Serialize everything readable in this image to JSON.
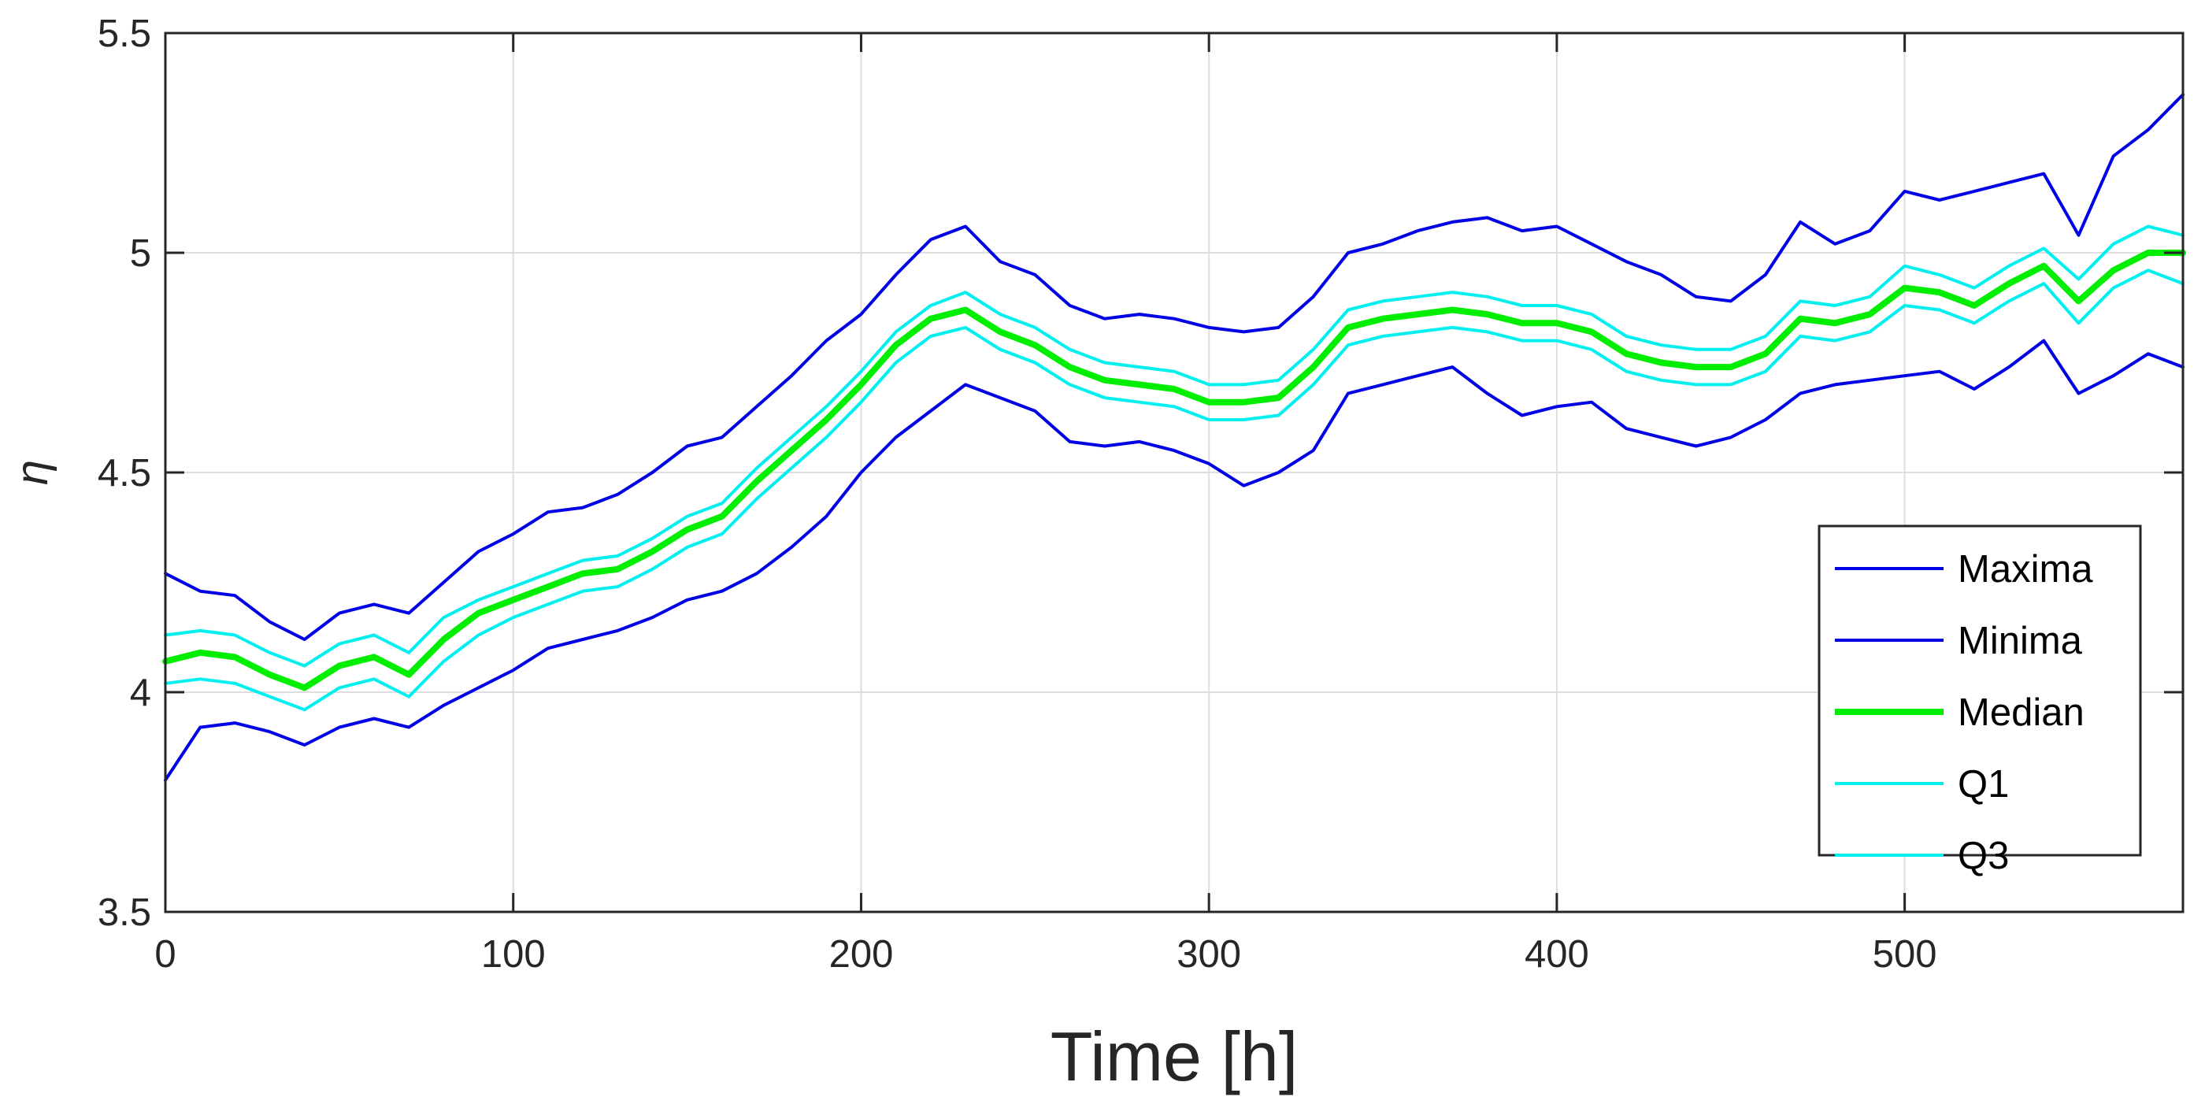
{
  "chart_data": {
    "type": "line",
    "title": "",
    "xlabel": "Time [h]",
    "ylabel": "η",
    "xlim": [
      0,
      580
    ],
    "ylim": [
      3.5,
      5.5
    ],
    "xticks": [
      0,
      100,
      200,
      300,
      400,
      500
    ],
    "yticks": [
      3.5,
      4,
      4.5,
      5,
      5.5
    ],
    "xtick_labels": [
      "0",
      "100",
      "200",
      "300",
      "400",
      "500"
    ],
    "ytick_labels": [
      "3.5",
      "4",
      "4.5",
      "5",
      "5.5"
    ],
    "grid": true,
    "legend_position": "bottom-right",
    "series": [
      {
        "name": "Maxima",
        "color": "#0000e6",
        "width": 4,
        "x": [
          0,
          10,
          20,
          30,
          40,
          50,
          60,
          70,
          80,
          90,
          100,
          110,
          120,
          130,
          140,
          150,
          160,
          170,
          180,
          190,
          200,
          210,
          220,
          230,
          240,
          250,
          260,
          270,
          280,
          290,
          300,
          310,
          320,
          330,
          340,
          350,
          360,
          370,
          380,
          390,
          400,
          410,
          420,
          430,
          440,
          450,
          460,
          470,
          480,
          490,
          500,
          510,
          520,
          530,
          540,
          550,
          560,
          570,
          580
        ],
        "values": [
          4.27,
          4.23,
          4.22,
          4.16,
          4.12,
          4.18,
          4.2,
          4.18,
          4.25,
          4.32,
          4.36,
          4.41,
          4.42,
          4.45,
          4.5,
          4.56,
          4.58,
          4.65,
          4.72,
          4.8,
          4.86,
          4.95,
          5.03,
          5.06,
          4.98,
          4.95,
          4.88,
          4.85,
          4.86,
          4.85,
          4.83,
          4.82,
          4.83,
          4.9,
          5.0,
          5.02,
          5.05,
          5.07,
          5.08,
          5.05,
          5.06,
          5.02,
          4.98,
          4.95,
          4.9,
          4.89,
          4.95,
          5.07,
          5.02,
          5.05,
          5.14,
          5.12,
          5.14,
          5.16,
          5.18,
          5.04,
          5.22,
          5.28,
          5.36
        ]
      },
      {
        "name": "Minima",
        "color": "#0000e6",
        "width": 4,
        "x": [
          0,
          10,
          20,
          30,
          40,
          50,
          60,
          70,
          80,
          90,
          100,
          110,
          120,
          130,
          140,
          150,
          160,
          170,
          180,
          190,
          200,
          210,
          220,
          230,
          240,
          250,
          260,
          270,
          280,
          290,
          300,
          310,
          320,
          330,
          340,
          350,
          360,
          370,
          380,
          390,
          400,
          410,
          420,
          430,
          440,
          450,
          460,
          470,
          480,
          490,
          500,
          510,
          520,
          530,
          540,
          550,
          560,
          570,
          580
        ],
        "values": [
          3.8,
          3.92,
          3.93,
          3.91,
          3.88,
          3.92,
          3.94,
          3.92,
          3.97,
          4.01,
          4.05,
          4.1,
          4.12,
          4.14,
          4.17,
          4.21,
          4.23,
          4.27,
          4.33,
          4.4,
          4.5,
          4.58,
          4.64,
          4.7,
          4.67,
          4.64,
          4.57,
          4.56,
          4.57,
          4.55,
          4.52,
          4.47,
          4.5,
          4.55,
          4.68,
          4.7,
          4.72,
          4.74,
          4.68,
          4.63,
          4.65,
          4.66,
          4.6,
          4.58,
          4.56,
          4.58,
          4.62,
          4.68,
          4.7,
          4.71,
          4.72,
          4.73,
          4.69,
          4.74,
          4.8,
          4.68,
          4.72,
          4.77,
          4.74
        ]
      },
      {
        "name": "Median",
        "color": "#00ee00",
        "width": 8,
        "x": [
          0,
          10,
          20,
          30,
          40,
          50,
          60,
          70,
          80,
          90,
          100,
          110,
          120,
          130,
          140,
          150,
          160,
          170,
          180,
          190,
          200,
          210,
          220,
          230,
          240,
          250,
          260,
          270,
          280,
          290,
          300,
          310,
          320,
          330,
          340,
          350,
          360,
          370,
          380,
          390,
          400,
          410,
          420,
          430,
          440,
          450,
          460,
          470,
          480,
          490,
          500,
          510,
          520,
          530,
          540,
          550,
          560,
          570,
          580
        ],
        "values": [
          4.07,
          4.09,
          4.08,
          4.04,
          4.01,
          4.06,
          4.08,
          4.04,
          4.12,
          4.18,
          4.21,
          4.24,
          4.27,
          4.28,
          4.32,
          4.37,
          4.4,
          4.48,
          4.55,
          4.62,
          4.7,
          4.79,
          4.85,
          4.87,
          4.82,
          4.79,
          4.74,
          4.71,
          4.7,
          4.69,
          4.66,
          4.66,
          4.67,
          4.74,
          4.83,
          4.85,
          4.86,
          4.87,
          4.86,
          4.84,
          4.84,
          4.82,
          4.77,
          4.75,
          4.74,
          4.74,
          4.77,
          4.85,
          4.84,
          4.86,
          4.92,
          4.91,
          4.88,
          4.93,
          4.97,
          4.89,
          4.96,
          5.0,
          5.0
        ]
      },
      {
        "name": "Q1",
        "color": "#00f0f0",
        "width": 4,
        "x": [
          0,
          10,
          20,
          30,
          40,
          50,
          60,
          70,
          80,
          90,
          100,
          110,
          120,
          130,
          140,
          150,
          160,
          170,
          180,
          190,
          200,
          210,
          220,
          230,
          240,
          250,
          260,
          270,
          280,
          290,
          300,
          310,
          320,
          330,
          340,
          350,
          360,
          370,
          380,
          390,
          400,
          410,
          420,
          430,
          440,
          450,
          460,
          470,
          480,
          490,
          500,
          510,
          520,
          530,
          540,
          550,
          560,
          570,
          580
        ],
        "values": [
          4.13,
          4.14,
          4.13,
          4.09,
          4.06,
          4.11,
          4.13,
          4.09,
          4.17,
          4.21,
          4.24,
          4.27,
          4.3,
          4.31,
          4.35,
          4.4,
          4.43,
          4.51,
          4.58,
          4.65,
          4.73,
          4.82,
          4.88,
          4.91,
          4.86,
          4.83,
          4.78,
          4.75,
          4.74,
          4.73,
          4.7,
          4.7,
          4.71,
          4.78,
          4.87,
          4.89,
          4.9,
          4.91,
          4.9,
          4.88,
          4.88,
          4.86,
          4.81,
          4.79,
          4.78,
          4.78,
          4.81,
          4.89,
          4.88,
          4.9,
          4.97,
          4.95,
          4.92,
          4.97,
          5.01,
          4.94,
          5.02,
          5.06,
          5.04
        ]
      },
      {
        "name": "Q3",
        "color": "#00f0f0",
        "width": 4,
        "x": [
          0,
          10,
          20,
          30,
          40,
          50,
          60,
          70,
          80,
          90,
          100,
          110,
          120,
          130,
          140,
          150,
          160,
          170,
          180,
          190,
          200,
          210,
          220,
          230,
          240,
          250,
          260,
          270,
          280,
          290,
          300,
          310,
          320,
          330,
          340,
          350,
          360,
          370,
          380,
          390,
          400,
          410,
          420,
          430,
          440,
          450,
          460,
          470,
          480,
          490,
          500,
          510,
          520,
          530,
          540,
          550,
          560,
          570,
          580
        ],
        "values": [
          4.02,
          4.03,
          4.02,
          3.99,
          3.96,
          4.01,
          4.03,
          3.99,
          4.07,
          4.13,
          4.17,
          4.2,
          4.23,
          4.24,
          4.28,
          4.33,
          4.36,
          4.44,
          4.51,
          4.58,
          4.66,
          4.75,
          4.81,
          4.83,
          4.78,
          4.75,
          4.7,
          4.67,
          4.66,
          4.65,
          4.62,
          4.62,
          4.63,
          4.7,
          4.79,
          4.81,
          4.82,
          4.83,
          4.82,
          4.8,
          4.8,
          4.78,
          4.73,
          4.71,
          4.7,
          4.7,
          4.73,
          4.81,
          4.8,
          4.82,
          4.88,
          4.87,
          4.84,
          4.89,
          4.93,
          4.84,
          4.92,
          4.96,
          4.93
        ]
      }
    ]
  }
}
